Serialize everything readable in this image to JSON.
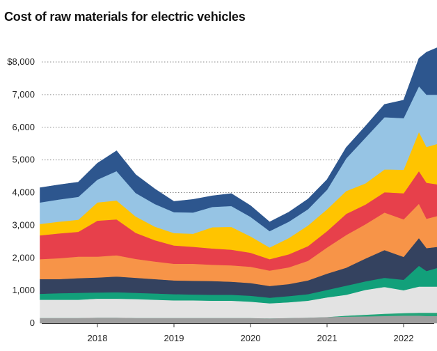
{
  "chart_title": "Cost of raw materials for electric vehicles",
  "chart_data": {
    "type": "area",
    "stacked": true,
    "title": "Cost of raw materials for electric vehicles",
    "xlabel": "",
    "ylabel": "",
    "ylim": [
      0,
      8600
    ],
    "grid": true,
    "x_ticks": [
      {
        "x": 2018.0,
        "label": "2018"
      },
      {
        "x": 2019.0,
        "label": "2019"
      },
      {
        "x": 2020.0,
        "label": "2020"
      },
      {
        "x": 2021.0,
        "label": "2021"
      },
      {
        "x": 2022.0,
        "label": "2022"
      }
    ],
    "y_ticks": [
      {
        "value": 0,
        "label": "0"
      },
      {
        "value": 1000,
        "label": "1,000"
      },
      {
        "value": 2000,
        "label": "2,000"
      },
      {
        "value": 3000,
        "label": "3,000"
      },
      {
        "value": 4000,
        "label": "4,000"
      },
      {
        "value": 5000,
        "label": "5,000"
      },
      {
        "value": 6000,
        "label": "6,000"
      },
      {
        "value": 7000,
        "label": "7,000"
      },
      {
        "value": 8000,
        "label": "$8,000"
      }
    ],
    "x": [
      2017.25,
      2017.5,
      2017.75,
      2018.0,
      2018.25,
      2018.5,
      2018.75,
      2019.0,
      2019.25,
      2019.5,
      2019.75,
      2020.0,
      2020.25,
      2020.5,
      2020.75,
      2021.0,
      2021.25,
      2021.5,
      2021.75,
      2022.0,
      2022.2,
      2022.3,
      2022.45
    ],
    "series": [
      {
        "color": "#9e9e9e",
        "values": [
          160,
          160,
          160,
          170,
          170,
          160,
          160,
          160,
          160,
          160,
          160,
          160,
          150,
          160,
          170,
          190,
          200,
          210,
          220,
          230,
          230,
          220,
          220
        ]
      },
      {
        "color": "#25a57a",
        "values": [
          0,
          0,
          0,
          0,
          0,
          0,
          0,
          0,
          0,
          0,
          0,
          0,
          0,
          0,
          0,
          0,
          30,
          50,
          70,
          80,
          90,
          100,
          100
        ]
      },
      {
        "color": "#e3e3e3",
        "values": [
          560,
          560,
          560,
          580,
          580,
          580,
          560,
          540,
          540,
          530,
          530,
          500,
          460,
          480,
          520,
          600,
          640,
          760,
          820,
          700,
          800,
          800,
          800
        ]
      },
      {
        "color": "#12a07a",
        "values": [
          180,
          200,
          210,
          190,
          200,
          190,
          190,
          190,
          180,
          180,
          180,
          180,
          170,
          190,
          200,
          230,
          280,
          260,
          280,
          320,
          640,
          480,
          580
        ]
      },
      {
        "color": "#34425f",
        "values": [
          450,
          430,
          450,
          460,
          480,
          460,
          440,
          420,
          420,
          420,
          400,
          390,
          360,
          370,
          420,
          500,
          550,
          700,
          850,
          700,
          850,
          700,
          640
        ]
      },
      {
        "color": "#f79448",
        "values": [
          610,
          640,
          660,
          640,
          650,
          580,
          540,
          510,
          520,
          500,
          500,
          500,
          470,
          510,
          600,
          800,
          1000,
          1050,
          1150,
          1150,
          1050,
          900,
          950
        ]
      },
      {
        "color": "#e7404b",
        "values": [
          730,
          760,
          760,
          1100,
          1100,
          800,
          650,
          560,
          520,
          500,
          480,
          430,
          350,
          400,
          450,
          500,
          650,
          600,
          620,
          800,
          1000,
          1100,
          960
        ]
      },
      {
        "color": "#ffc400",
        "values": [
          350,
          360,
          370,
          560,
          580,
          500,
          420,
          380,
          400,
          650,
          700,
          500,
          360,
          500,
          630,
          670,
          700,
          650,
          700,
          720,
          1200,
          1100,
          1250
        ]
      },
      {
        "color": "#96c4e4",
        "values": [
          660,
          680,
          700,
          700,
          900,
          720,
          690,
          640,
          650,
          620,
          640,
          600,
          500,
          500,
          500,
          600,
          1000,
          1400,
          1600,
          1580,
          1400,
          1600,
          1500
        ]
      },
      {
        "color": "#2d568e",
        "values": [
          450,
          450,
          450,
          500,
          620,
          560,
          460,
          330,
          400,
          340,
          380,
          340,
          280,
          290,
          310,
          310,
          330,
          350,
          390,
          550,
          850,
          1300,
          1450
        ]
      }
    ]
  }
}
